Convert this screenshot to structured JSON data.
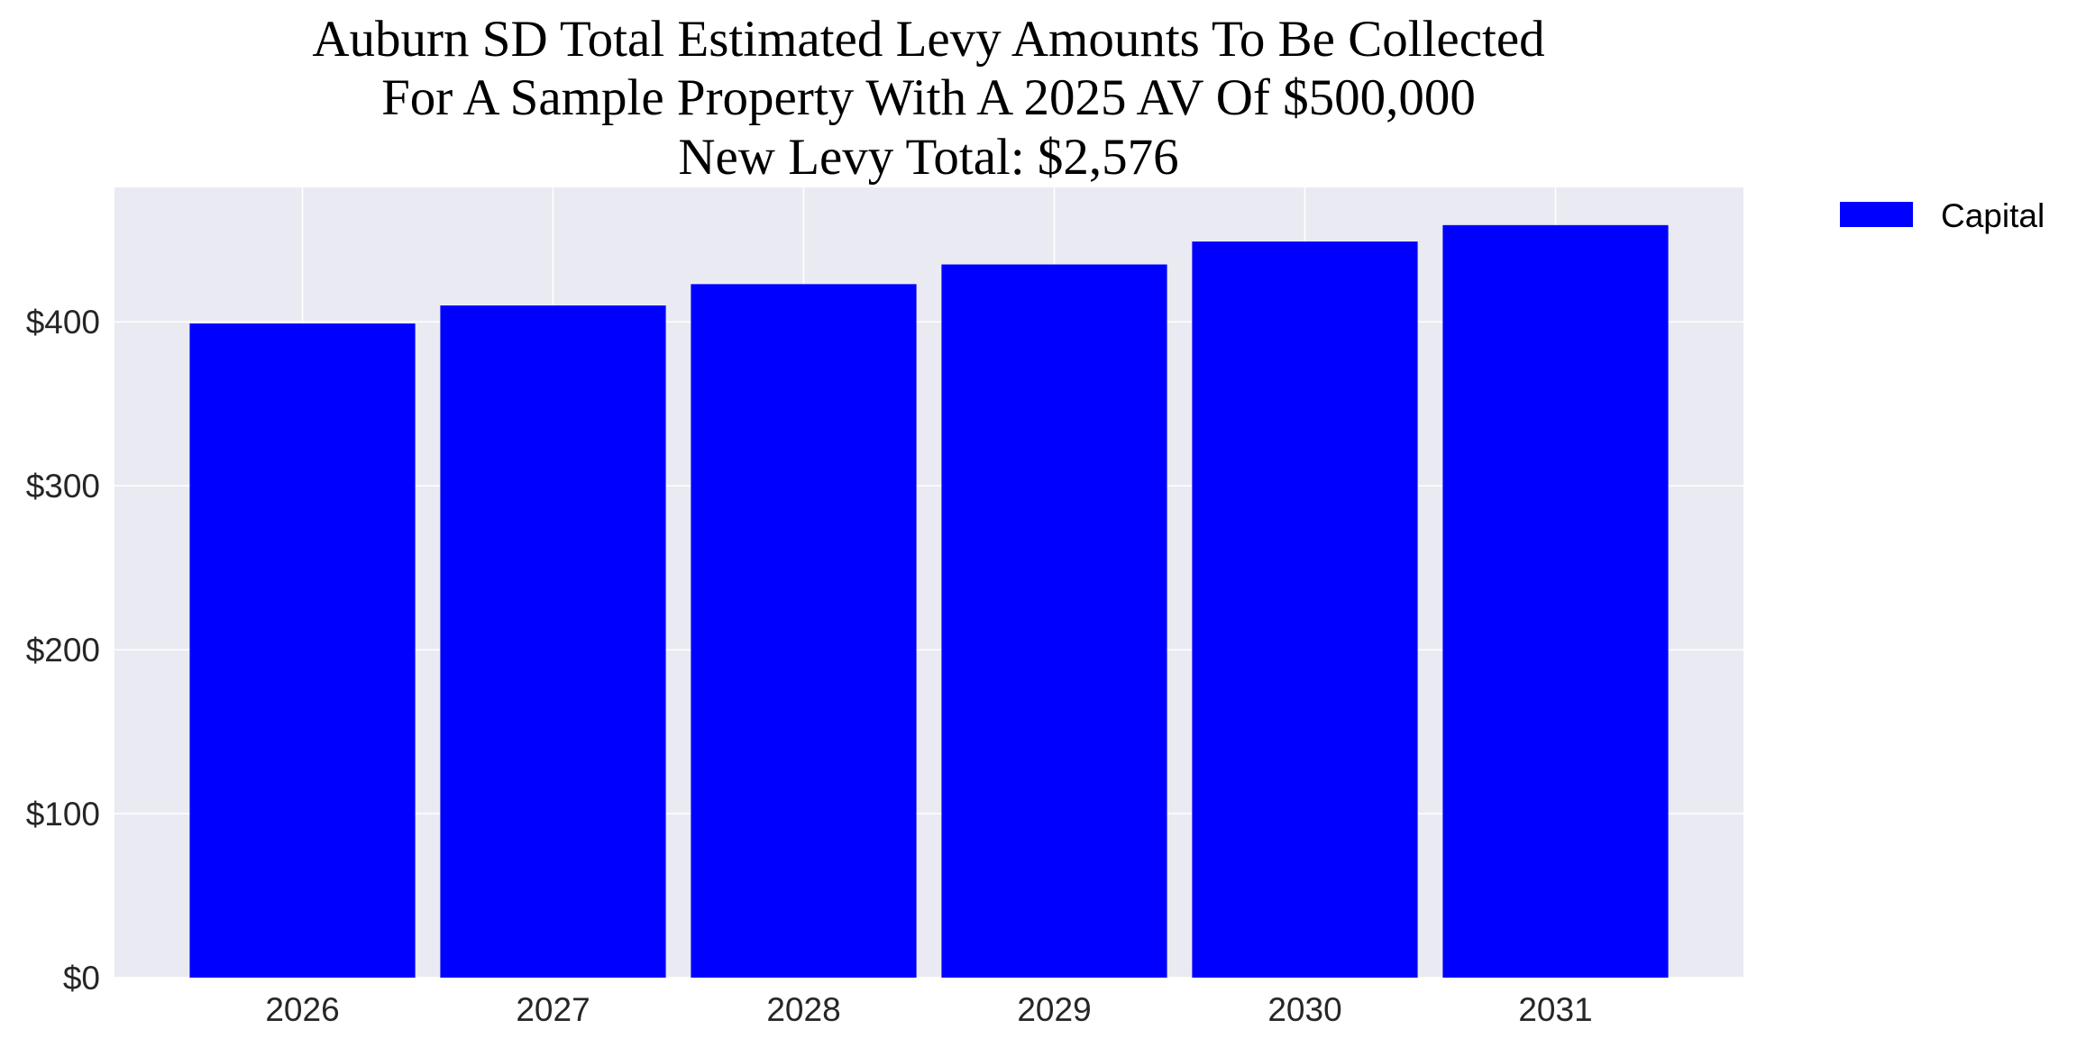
{
  "chart_data": {
    "type": "bar",
    "title_lines": [
      "Auburn SD Total Estimated Levy Amounts To Be Collected",
      "For A Sample Property With A 2025 AV Of $500,000",
      "New Levy Total: $2,576"
    ],
    "categories": [
      "2026",
      "2027",
      "2028",
      "2029",
      "2030",
      "2031"
    ],
    "series": [
      {
        "name": "Capital",
        "values": [
          399,
          410,
          423,
          435,
          449,
          459
        ],
        "color": "#0000ff"
      }
    ],
    "y_ticks": [
      0,
      100,
      200,
      300,
      400
    ],
    "y_tick_labels": [
      "$0",
      "$100",
      "$200",
      "$300",
      "$400"
    ],
    "ylim": [
      0,
      482
    ],
    "xlabel": "",
    "ylabel": "",
    "grid": true,
    "plot_background": "#eaeaf2",
    "legend_position": "outside-right-top"
  }
}
